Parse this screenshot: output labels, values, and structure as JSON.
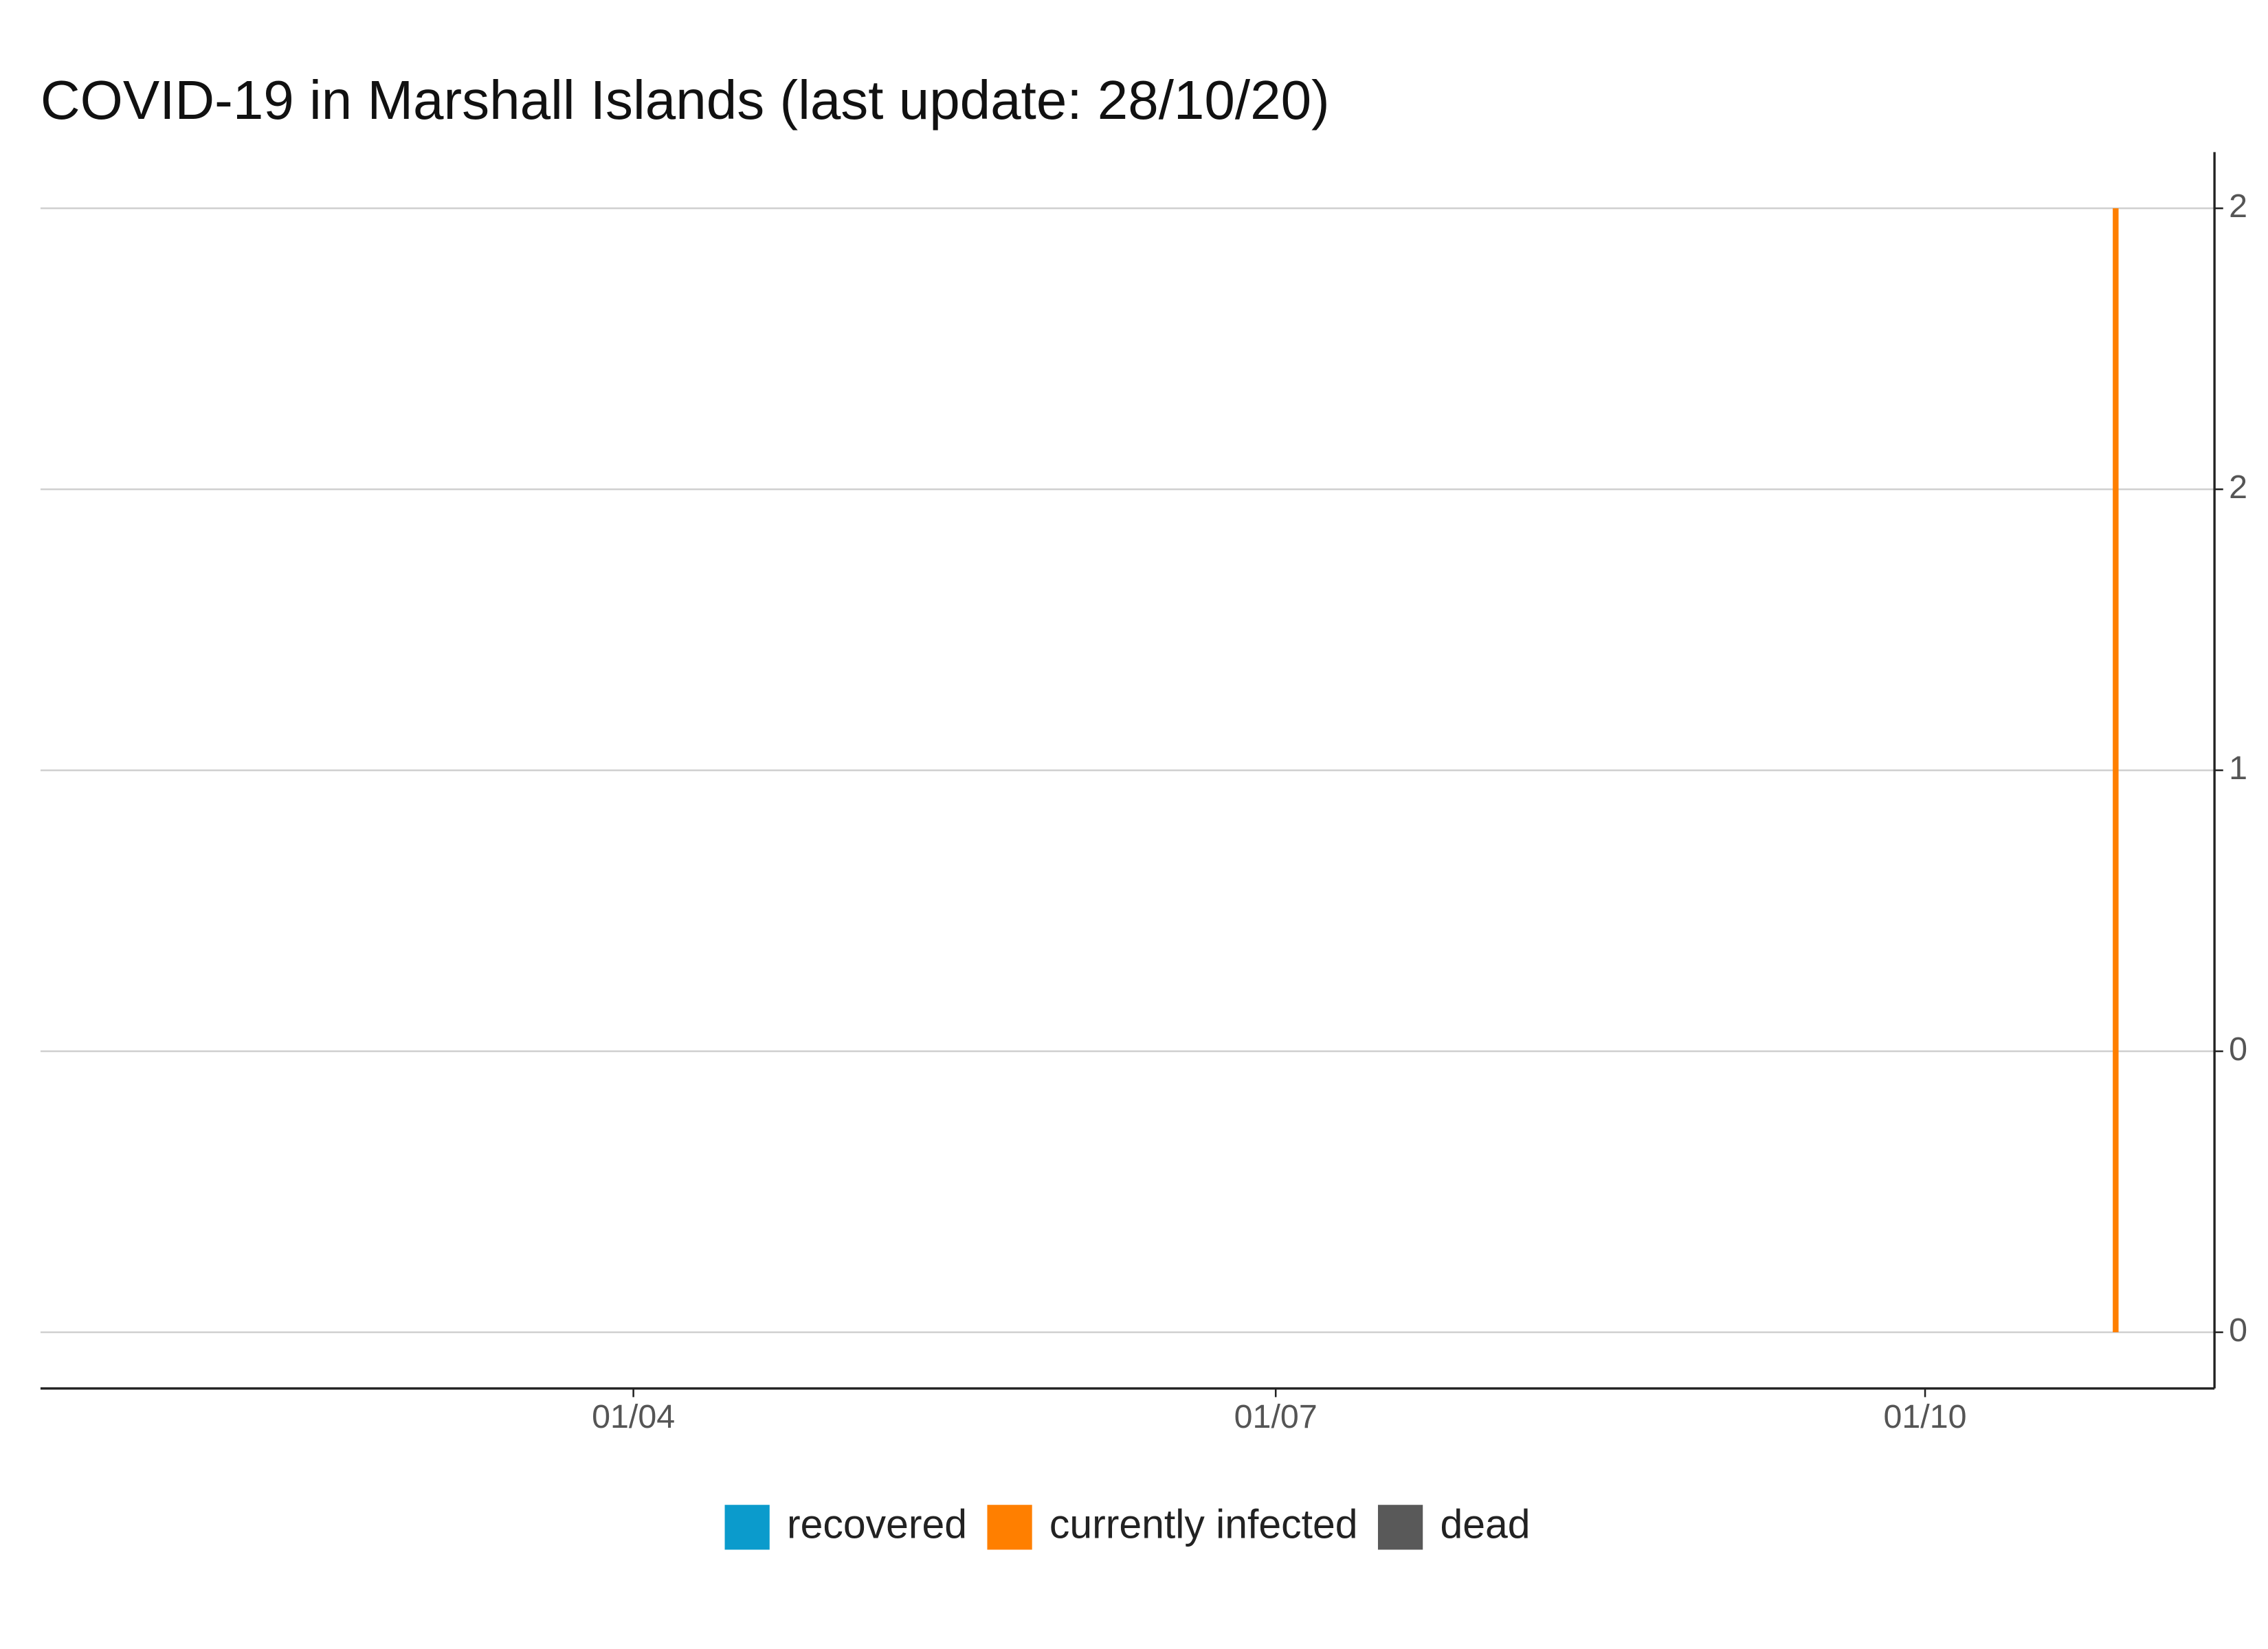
{
  "chart_data": {
    "type": "area",
    "title": "COVID-19 in Marshall Islands (last update: 28/10/20)",
    "x": [
      "28/10"
    ],
    "series": [
      {
        "name": "recovered",
        "color": "#0b9bcc",
        "values": [
          0
        ]
      },
      {
        "name": "currently infected",
        "color": "#ff7f00",
        "values": [
          2
        ]
      },
      {
        "name": "dead",
        "color": "#595959",
        "values": [
          0
        ]
      }
    ],
    "stacked": true,
    "xlim": [
      "08/01",
      "11/11"
    ],
    "xticks": [
      "01/04",
      "01/07",
      "01/10"
    ],
    "ylim": [
      -0.1,
      2.1
    ],
    "yticks": [
      0,
      {
        "value": 0.5,
        "label": "0"
      },
      1,
      {
        "value": 1.5,
        "label": "2"
      },
      2
    ],
    "y_axis_side": "right",
    "grid": true,
    "legend": "bottom"
  }
}
